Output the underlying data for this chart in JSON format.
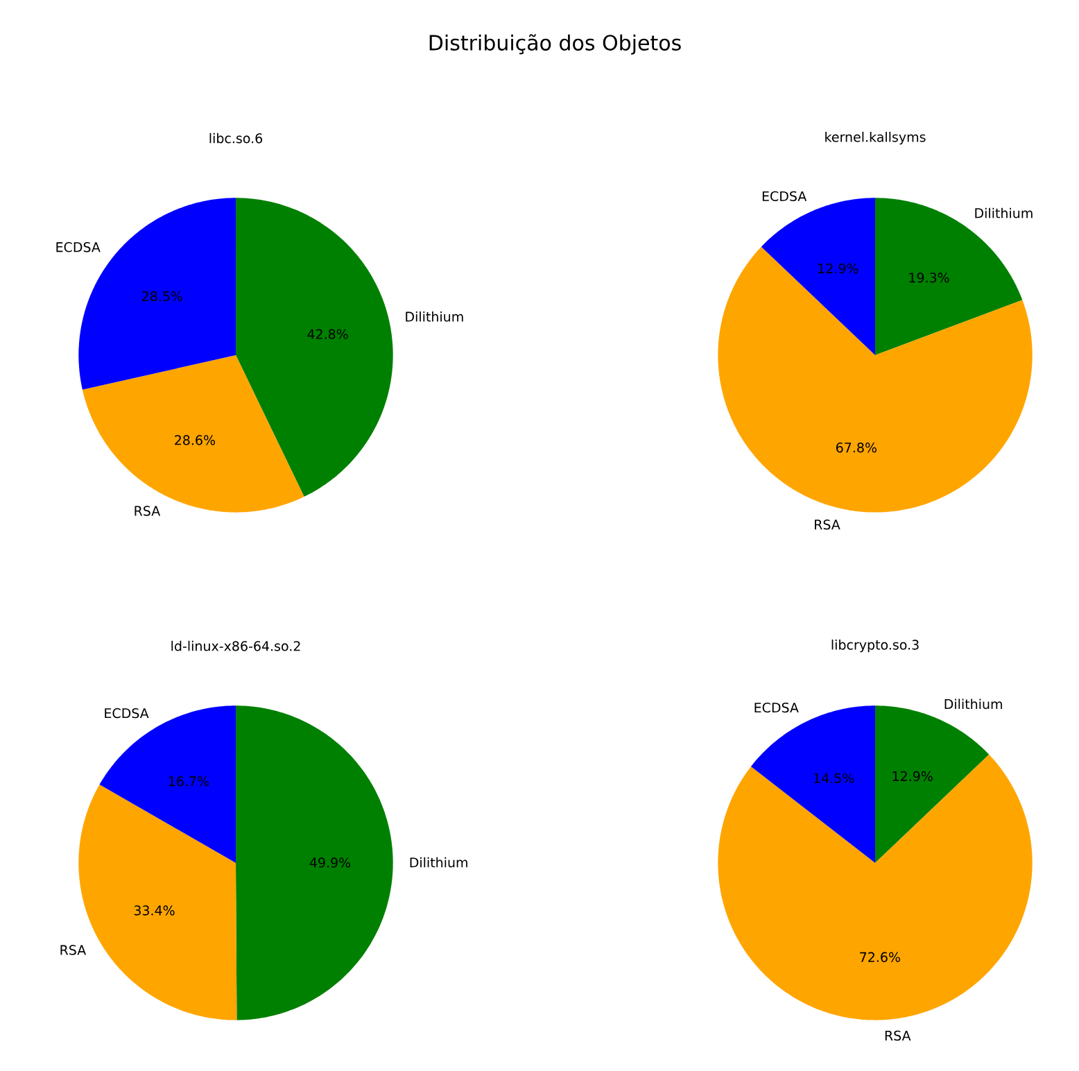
{
  "chart_data": [
    {
      "type": "pie",
      "title": "libc.so.6",
      "annotations": [
        "Distribuição dos Objetos"
      ],
      "categories": [
        "Dilithium",
        "RSA",
        "ECDSA"
      ],
      "values": [
        42.8,
        28.6,
        28.5
      ],
      "value_labels": [
        "42.8%",
        "28.6%",
        "28.5%"
      ],
      "colors": [
        "#008000",
        "#ffa500",
        "#0000ff"
      ]
    },
    {
      "type": "pie",
      "title": "kernel.kallsyms",
      "categories": [
        "Dilithium",
        "RSA",
        "ECDSA"
      ],
      "values": [
        19.3,
        67.8,
        12.9
      ],
      "value_labels": [
        "19.3%",
        "67.8%",
        "12.9%"
      ],
      "colors": [
        "#008000",
        "#ffa500",
        "#0000ff"
      ]
    },
    {
      "type": "pie",
      "title": "ld-linux-x86-64.so.2",
      "categories": [
        "Dilithium",
        "RSA",
        "ECDSA"
      ],
      "values": [
        49.9,
        33.4,
        16.7
      ],
      "value_labels": [
        "49.9%",
        "33.4%",
        "16.7%"
      ],
      "colors": [
        "#008000",
        "#ffa500",
        "#0000ff"
      ]
    },
    {
      "type": "pie",
      "title": "libcrypto.so.3",
      "categories": [
        "Dilithium",
        "RSA",
        "ECDSA"
      ],
      "values": [
        12.9,
        72.6,
        14.5
      ],
      "value_labels": [
        "12.9%",
        "72.6%",
        "14.5%"
      ],
      "colors": [
        "#008000",
        "#ffa500",
        "#0000ff"
      ]
    }
  ]
}
